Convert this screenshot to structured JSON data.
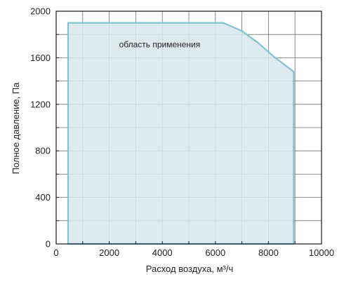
{
  "chart_data": {
    "type": "area",
    "title": "",
    "xlabel": "Расход воздуха, м³/ч",
    "ylabel": "Полное давление, Па",
    "xlim": [
      0,
      10000
    ],
    "ylim": [
      0,
      2000
    ],
    "x_ticks": [
      0,
      2000,
      4000,
      6000,
      8000,
      10000
    ],
    "y_ticks": [
      0,
      400,
      800,
      1200,
      1600,
      2000
    ],
    "x_minor_step": 1000,
    "y_minor_step": 200,
    "grid": true,
    "legend": "none",
    "series": [
      {
        "name": "",
        "x": [
          450,
          450,
          6300,
          7000,
          7600,
          8200,
          8950,
          8950
        ],
        "y": [
          0,
          1900,
          1900,
          1830,
          1730,
          1610,
          1480,
          0
        ]
      }
    ],
    "annotations": [
      {
        "text": "область применения",
        "x": 3900,
        "y": 1690
      }
    ],
    "colors": {
      "fill": "#d7e8ec",
      "stroke": "#7fc4cf",
      "grid": "#6e6e6e",
      "axis": "#1a1a1a"
    }
  }
}
